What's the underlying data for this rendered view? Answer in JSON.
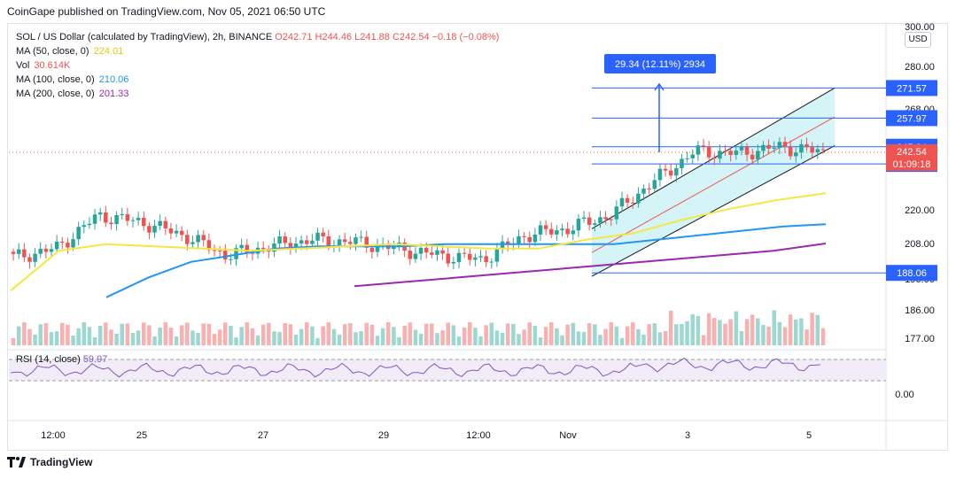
{
  "header": {
    "published": "CoinGape published on TradingView.com, Nov 05, 2021 06:50 UTC"
  },
  "legend": {
    "symbol": "SOL / US Dollar (calculated by TradingView), 2h, BINANCE",
    "ohlc": "O242.71  H244.46  L241.88  C242.54  −0.18 (−0.08%)",
    "ma50_label": "MA (50, close, 0)",
    "ma50_value": "224.01",
    "vol_label": "Vol",
    "vol_value": "30.614K",
    "ma100_label": "MA (100, close, 0)",
    "ma100_value": "210.06",
    "ma200_label": "MA (200, close, 0)",
    "ma200_value": "201.33",
    "rsi_label": "RSI (14, close)",
    "rsi_value": "59.97"
  },
  "currency_button": "USD",
  "measure_label": "29.34 (12.11%) 2934",
  "footer": {
    "brand": "TradingView"
  },
  "colors": {
    "up": "#26a69a",
    "down": "#ef5350",
    "ma50": "#f5e642",
    "ma100": "#2196f3",
    "ma200": "#9c27b0",
    "channel": "#b2ebf2",
    "level": "#2962ff",
    "rsi": "#7e57c2"
  },
  "chart_data": {
    "type": "line",
    "symbol": "SOL/USD",
    "timeframe": "2h",
    "x_ticks": [
      "12:00",
      "25",
      "27",
      "29",
      "12:00",
      "Nov",
      "3",
      "5"
    ],
    "y_ticks": [
      "300.00",
      "280.00",
      "268.00",
      "220.00",
      "208.00",
      "196.00",
      "186.00",
      "177.00"
    ],
    "rsi_ticks": [
      "0.00"
    ],
    "price_levels": [
      271.57,
      257.97,
      245.04,
      237.3,
      188.06
    ],
    "price_level_labels": [
      "271.57",
      "257.97",
      "245.04",
      "237.30",
      "188.06"
    ],
    "last_price": {
      "value": "242.54",
      "countdown": "01:09:18"
    },
    "price_series": [
      {
        "x": "12:00",
        "y": 195
      },
      {
        "x": "25",
        "y": 199
      },
      {
        "x": "25-mid",
        "y": 214
      },
      {
        "x": "26",
        "y": 211
      },
      {
        "x": "27",
        "y": 205
      },
      {
        "x": "27-mid",
        "y": 196
      },
      {
        "x": "28",
        "y": 200
      },
      {
        "x": "29",
        "y": 203
      },
      {
        "x": "29-mid",
        "y": 202
      },
      {
        "x": "30",
        "y": 199
      },
      {
        "x": "12:00",
        "y": 196
      },
      {
        "x": "31",
        "y": 194
      },
      {
        "x": "Nov",
        "y": 205
      },
      {
        "x": "Nov-mid",
        "y": 208
      },
      {
        "x": "2",
        "y": 214
      },
      {
        "x": "3",
        "y": 229
      },
      {
        "x": "3-mid",
        "y": 243
      },
      {
        "x": "4",
        "y": 242
      },
      {
        "x": "5",
        "y": 245
      },
      {
        "x": "5-last",
        "y": 242.54
      }
    ],
    "series": [
      {
        "name": "MA (50, close, 0)",
        "values": [
          180,
          198,
          201,
          200,
          199,
          198,
          199,
          200,
          201,
          200,
          199,
          199,
          203,
          206,
          212,
          217,
          221,
          224.01
        ]
      },
      {
        "name": "MA (100, close, 0)",
        "values": [
          177,
          186,
          193,
          196,
          199,
          200,
          200,
          200,
          201,
          201,
          201,
          201,
          201,
          203,
          205,
          207,
          209,
          210.06
        ]
      },
      {
        "name": "MA (200, close, 0)",
        "values": [
          182,
          184,
          186,
          188,
          190,
          192,
          194,
          196,
          198,
          201.33
        ]
      }
    ],
    "measurement": {
      "change": 29.34,
      "change_pct": 12.11,
      "ticks": 2934
    }
  }
}
